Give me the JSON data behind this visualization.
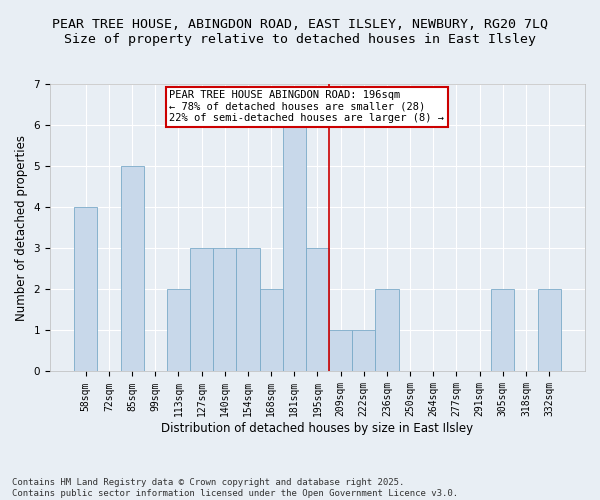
{
  "title_line1": "PEAR TREE HOUSE, ABINGDON ROAD, EAST ILSLEY, NEWBURY, RG20 7LQ",
  "title_line2": "Size of property relative to detached houses in East Ilsley",
  "xlabel": "Distribution of detached houses by size in East Ilsley",
  "ylabel": "Number of detached properties",
  "categories": [
    "58sqm",
    "72sqm",
    "85sqm",
    "99sqm",
    "113sqm",
    "127sqm",
    "140sqm",
    "154sqm",
    "168sqm",
    "181sqm",
    "195sqm",
    "209sqm",
    "222sqm",
    "236sqm",
    "250sqm",
    "264sqm",
    "277sqm",
    "291sqm",
    "305sqm",
    "318sqm",
    "332sqm"
  ],
  "values": [
    4,
    0,
    5,
    0,
    2,
    3,
    3,
    3,
    2,
    6,
    3,
    1,
    1,
    2,
    0,
    0,
    0,
    0,
    2,
    0,
    2
  ],
  "bar_color": "#c8d8ea",
  "bar_edge_color": "#7aaac8",
  "highlight_index": 10,
  "highlight_line_color": "#cc0000",
  "annotation_text": "PEAR TREE HOUSE ABINGDON ROAD: 196sqm\n← 78% of detached houses are smaller (28)\n22% of semi-detached houses are larger (8) →",
  "annotation_box_color": "#ffffff",
  "annotation_box_edge": "#cc0000",
  "ylim": [
    0,
    7
  ],
  "yticks": [
    0,
    1,
    2,
    3,
    4,
    5,
    6,
    7
  ],
  "footer": "Contains HM Land Registry data © Crown copyright and database right 2025.\nContains public sector information licensed under the Open Government Licence v3.0.",
  "bg_color": "#e8eef4",
  "plot_bg_color": "#e8eef4",
  "grid_color": "#ffffff",
  "title_fontsize": 9.5,
  "subtitle_fontsize": 9.5,
  "axis_label_fontsize": 8.5,
  "tick_fontsize": 7,
  "annotation_fontsize": 7.5,
  "footer_fontsize": 6.5
}
